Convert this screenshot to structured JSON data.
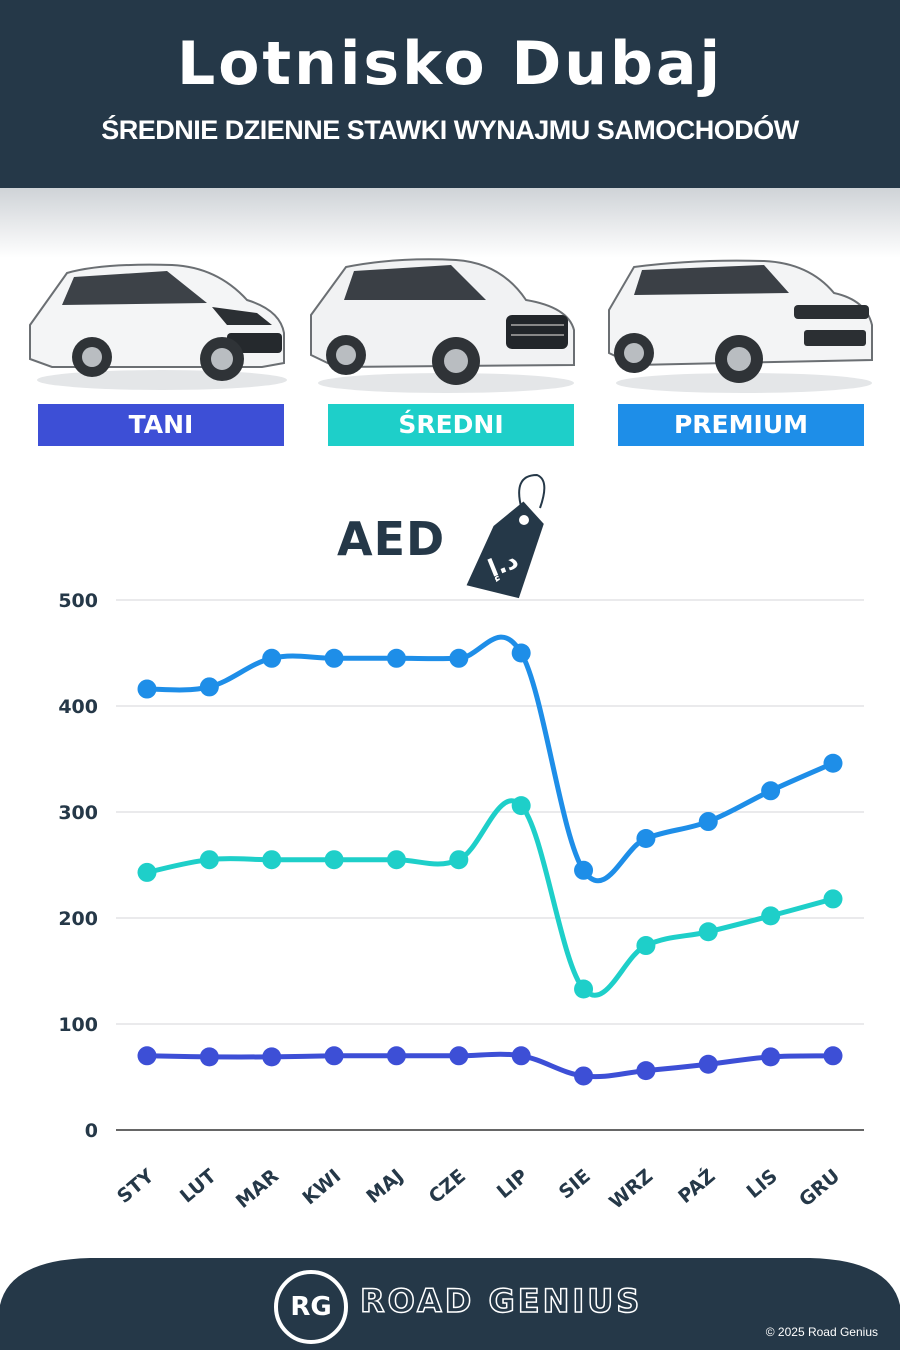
{
  "header": {
    "title": "Lotnisko Dubaj",
    "subtitle": "ŚREDNIE DZIENNE STAWKI WYNAJMU SAMOCHODÓW"
  },
  "categories": [
    {
      "label": "TANI",
      "color": "#3d4fd6",
      "icon": "hatchback-car-icon"
    },
    {
      "label": "ŚREDNI",
      "color": "#1ecfc9",
      "icon": "suv-car-icon"
    },
    {
      "label": "PREMIUM",
      "color": "#1e8ee8",
      "icon": "luxury-suv-car-icon"
    }
  ],
  "currency_label": "AED",
  "currency_tag_text": "د.إ",
  "chart_data": {
    "type": "line",
    "categories": [
      "STY",
      "LUT",
      "MAR",
      "KWI",
      "MAJ",
      "CZE",
      "LIP",
      "SIE",
      "WRZ",
      "PAŹ",
      "LIS",
      "GRU"
    ],
    "y_ticks": [
      0,
      100,
      200,
      300,
      400,
      500
    ],
    "ylim": [
      0,
      500
    ],
    "grid": true,
    "series": [
      {
        "name": "PREMIUM",
        "color": "#1e8ee8",
        "values": [
          416,
          418,
          445,
          445,
          445,
          445,
          450,
          245,
          275,
          291,
          320,
          346
        ]
      },
      {
        "name": "ŚREDNI",
        "color": "#1ecfc9",
        "values": [
          243,
          255,
          255,
          255,
          255,
          255,
          306,
          133,
          174,
          187,
          202,
          218
        ]
      },
      {
        "name": "TANI",
        "color": "#3d4fd6",
        "values": [
          70,
          69,
          69,
          70,
          70,
          70,
          70,
          51,
          56,
          62,
          69,
          70
        ]
      }
    ]
  },
  "footer": {
    "logo_text": "RG",
    "brand": "ROAD GENIUS",
    "copyright": "© 2025 Road Genius"
  }
}
